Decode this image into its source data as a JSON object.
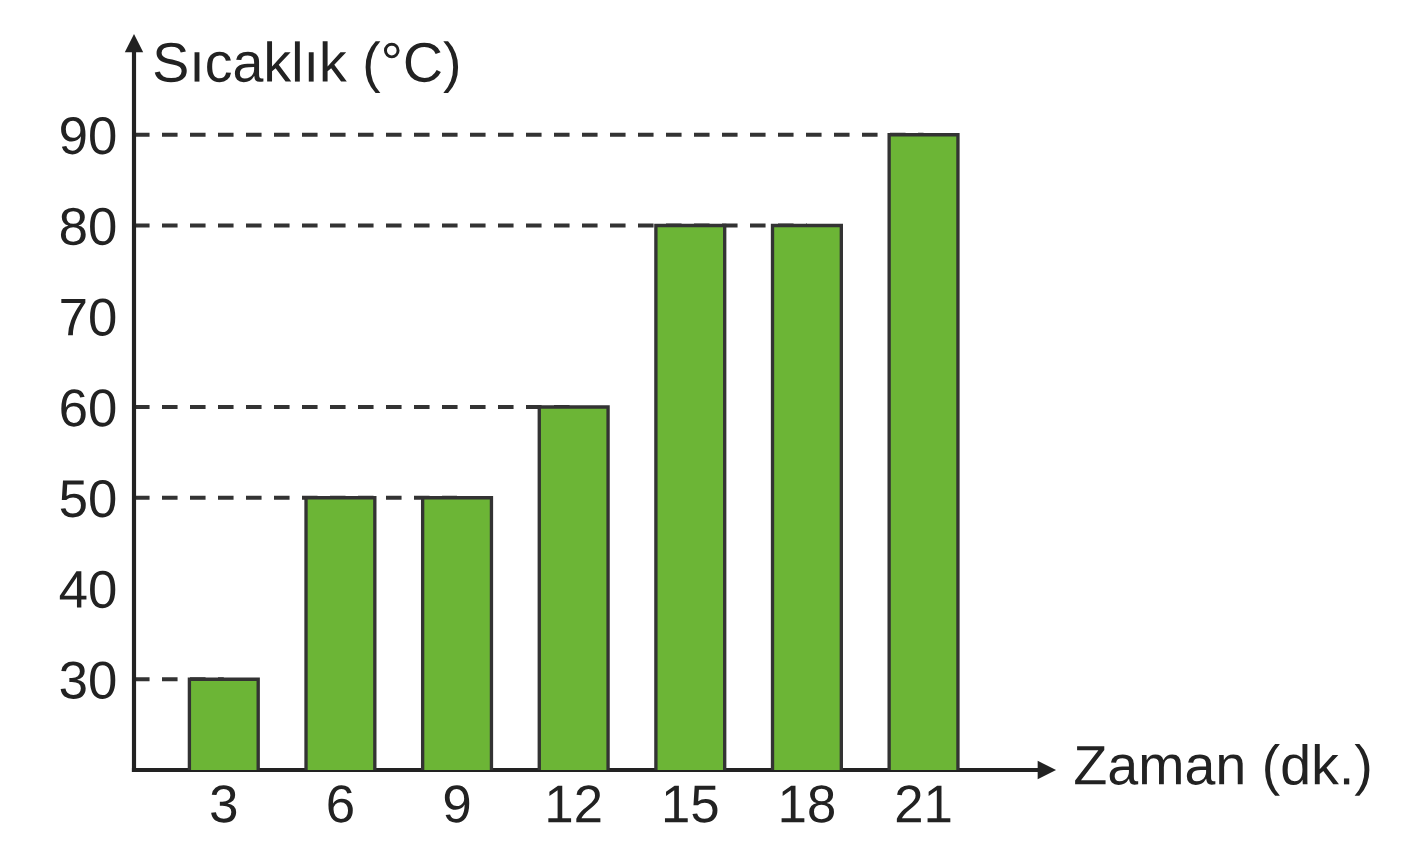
{
  "chart_data": {
    "type": "bar",
    "xlabel": "Zaman (dk.)",
    "ylabel": "Sıcaklık (°C)",
    "categories": [
      "3",
      "6",
      "9",
      "12",
      "15",
      "18",
      "21"
    ],
    "values": [
      30,
      50,
      50,
      60,
      80,
      80,
      90
    ],
    "color": "#6cb536",
    "ylim": [
      20,
      100
    ],
    "yticks": [
      30,
      40,
      50,
      60,
      70,
      80,
      90
    ],
    "ref_lines": [
      {
        "axis": "y",
        "value": 30,
        "line_style": "dashed",
        "color": "#333333"
      },
      {
        "axis": "y",
        "value": 50,
        "line_style": "dashed",
        "color": "#333333"
      },
      {
        "axis": "y",
        "value": 60,
        "line_style": "dashed",
        "color": "#333333"
      },
      {
        "axis": "y",
        "value": 80,
        "line_style": "dashed",
        "color": "#333333"
      },
      {
        "axis": "y",
        "value": 90,
        "line_style": "dashed",
        "color": "#333333"
      }
    ],
    "grid": false
  }
}
